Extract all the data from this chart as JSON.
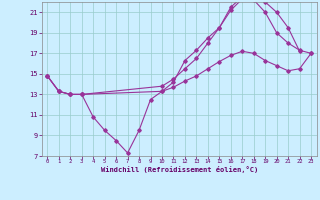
{
  "xlabel": "Windchill (Refroidissement éolien,°C)",
  "bg_color": "#cceeff",
  "line_color": "#993399",
  "grid_color": "#99cccc",
  "xmin": -0.5,
  "xmax": 23.5,
  "ymin": 7,
  "ymax": 22,
  "yticks": [
    7,
    9,
    11,
    13,
    15,
    17,
    19,
    21
  ],
  "xticks": [
    0,
    1,
    2,
    3,
    4,
    5,
    6,
    7,
    8,
    9,
    10,
    11,
    12,
    13,
    14,
    15,
    16,
    17,
    18,
    19,
    20,
    21,
    22,
    23
  ],
  "line1_x": [
    0,
    1,
    2,
    3,
    4,
    5,
    6,
    7,
    8,
    9,
    10,
    11,
    12,
    13,
    14,
    15,
    16,
    17,
    18,
    19,
    20,
    21,
    22,
    23
  ],
  "line1_y": [
    14.8,
    13.3,
    13.0,
    13.0,
    10.8,
    9.5,
    8.5,
    7.3,
    9.5,
    12.5,
    13.3,
    14.2,
    16.3,
    17.3,
    18.5,
    19.5,
    21.5,
    22.5,
    22.2,
    21.0,
    19.0,
    18.0,
    17.3,
    17.0
  ],
  "line2_x": [
    0,
    1,
    2,
    3,
    10,
    11,
    12,
    13,
    14,
    15,
    16,
    17,
    18,
    19,
    20,
    21,
    22,
    23
  ],
  "line2_y": [
    14.8,
    13.3,
    13.0,
    13.0,
    13.3,
    13.7,
    14.3,
    14.8,
    15.5,
    16.2,
    16.8,
    17.2,
    17.0,
    16.3,
    15.8,
    15.3,
    15.5,
    17.0
  ],
  "line3_x": [
    0,
    1,
    2,
    3,
    10,
    11,
    12,
    13,
    14,
    15,
    16,
    17,
    18,
    19,
    20,
    21,
    22
  ],
  "line3_y": [
    14.8,
    13.3,
    13.0,
    13.0,
    13.8,
    14.5,
    15.5,
    16.5,
    18.0,
    19.5,
    21.2,
    22.3,
    22.5,
    22.0,
    21.0,
    19.5,
    17.2
  ]
}
